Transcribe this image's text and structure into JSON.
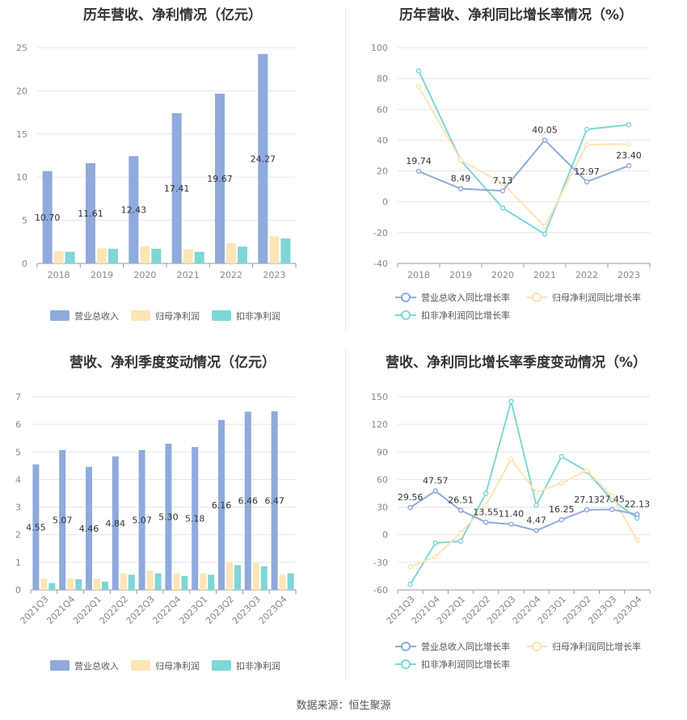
{
  "source": "数据来源：恒生聚源",
  "colors": {
    "revenue": "#8faadc",
    "net_profit": "#fde5b5",
    "deducted_profit": "#7fd6d6",
    "grid": "#e5e5e5",
    "axis": "#999999"
  },
  "chart_data": [
    {
      "type": "bar",
      "title": "历年营收、净利情况（亿元）",
      "categories": [
        "2018",
        "2019",
        "2020",
        "2021",
        "2022",
        "2023"
      ],
      "ylim": [
        0,
        25
      ],
      "yticks": [
        0,
        5,
        10,
        15,
        20,
        25
      ],
      "series": [
        {
          "name": "营业总收入",
          "values": [
            10.7,
            11.61,
            12.43,
            17.41,
            19.67,
            24.27
          ],
          "labels": [
            "10.70",
            "11.61",
            "12.43",
            "17.41",
            "19.67",
            "24.27"
          ]
        },
        {
          "name": "归母净利润",
          "values": [
            1.4,
            1.75,
            2.0,
            1.65,
            2.35,
            3.15
          ]
        },
        {
          "name": "扣非净利润",
          "values": [
            1.35,
            1.7,
            1.7,
            1.35,
            1.95,
            2.9
          ]
        }
      ],
      "legend": "bottom"
    },
    {
      "type": "line",
      "title": "历年营收、净利同比增长率情况（%）",
      "categories": [
        "2018",
        "2019",
        "2020",
        "2021",
        "2022",
        "2023"
      ],
      "ylim": [
        -40,
        100
      ],
      "yticks": [
        -40,
        -20,
        0,
        20,
        40,
        60,
        80,
        100
      ],
      "series": [
        {
          "name": "营业总收入同比增长率",
          "values": [
            19.74,
            8.49,
            7.13,
            40.05,
            12.97,
            23.4
          ],
          "labels": [
            "19.74",
            "8.49",
            "7.13",
            "40.05",
            "12.97",
            "23.40"
          ]
        },
        {
          "name": "归母净利润同比增长率",
          "values": [
            75,
            27,
            12,
            -16,
            37,
            37.5
          ]
        },
        {
          "name": "扣非净利润同比增长率",
          "values": [
            85,
            27,
            -4,
            -21,
            47,
            50
          ]
        }
      ],
      "legend": "bottom"
    },
    {
      "type": "bar",
      "title": "营收、净利季度变动情况（亿元）",
      "categories": [
        "2021Q3",
        "2021Q4",
        "2022Q1",
        "2022Q2",
        "2022Q3",
        "2022Q4",
        "2023Q1",
        "2023Q2",
        "2023Q3",
        "2023Q4"
      ],
      "ylim": [
        0,
        7
      ],
      "yticks": [
        0,
        1,
        2,
        3,
        4,
        5,
        6,
        7
      ],
      "series": [
        {
          "name": "营业总收入",
          "values": [
            4.55,
            5.07,
            4.46,
            4.84,
            5.07,
            5.3,
            5.18,
            6.16,
            6.46,
            6.47
          ],
          "labels": [
            "4.55",
            "5.07",
            "4.46",
            "4.84",
            "5.07",
            "5.30",
            "5.18",
            "6.16",
            "6.46",
            "6.47"
          ]
        },
        {
          "name": "归母净利润",
          "values": [
            0.4,
            0.42,
            0.4,
            0.6,
            0.7,
            0.6,
            0.6,
            1.02,
            0.98,
            0.55
          ]
        },
        {
          "name": "扣非净利润",
          "values": [
            0.25,
            0.38,
            0.3,
            0.55,
            0.6,
            0.5,
            0.55,
            0.9,
            0.85,
            0.6
          ]
        }
      ],
      "legend": "bottom"
    },
    {
      "type": "line",
      "title": "营收、净利同比增长率季度变动情况（%）",
      "categories": [
        "2021Q3",
        "2021Q4",
        "2022Q1",
        "2022Q2",
        "2022Q3",
        "2022Q4",
        "2023Q1",
        "2023Q2",
        "2023Q3",
        "2023Q4"
      ],
      "ylim": [
        -60,
        150
      ],
      "yticks": [
        -60,
        -30,
        0,
        30,
        60,
        90,
        120,
        150
      ],
      "series": [
        {
          "name": "营业总收入同比增长率",
          "values": [
            29.56,
            47.57,
            26.51,
            13.55,
            11.4,
            4.47,
            16.25,
            27.13,
            27.45,
            22.13
          ],
          "labels": [
            "29.56",
            "47.57",
            "26.51",
            "13.55",
            "11.40",
            "4.47",
            "16.25",
            "27.13",
            "27.45",
            "22.13"
          ]
        },
        {
          "name": "归母净利润同比增长率",
          "values": [
            -35,
            -24,
            2,
            32,
            82,
            46,
            56,
            70,
            42,
            -6
          ]
        },
        {
          "name": "扣非净利润同比增长率",
          "values": [
            -54,
            -9,
            -7,
            45,
            145,
            32,
            85,
            69,
            38,
            18
          ]
        }
      ],
      "legend": "bottom"
    }
  ]
}
